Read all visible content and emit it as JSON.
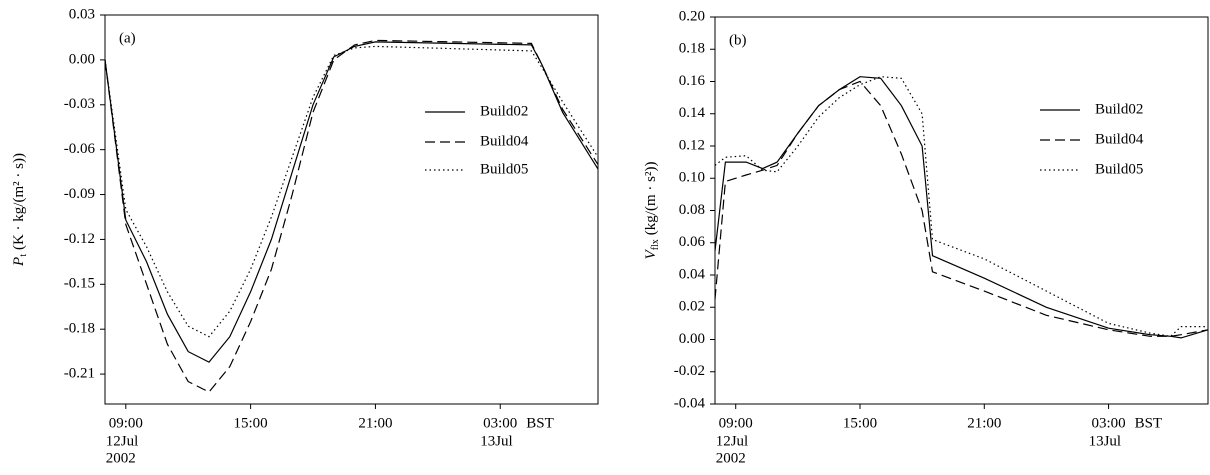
{
  "chart_data": [
    {
      "type": "line",
      "label": "(a)",
      "ylabel": {
        "symbol": "P",
        "subscript": "t",
        "unit": "(K · kg/(m² · s))"
      },
      "x": [
        8,
        9,
        10,
        11,
        12,
        13,
        14,
        15,
        16,
        17,
        18,
        19,
        20,
        21,
        28.5,
        29,
        30,
        31.7
      ],
      "series": [
        {
          "name": "Build02",
          "color": "#000000",
          "style": "solid",
          "values": [
            0,
            -0.107,
            -0.135,
            -0.17,
            -0.195,
            -0.202,
            -0.185,
            -0.155,
            -0.12,
            -0.075,
            -0.03,
            0.002,
            0.009,
            0.012,
            0.01,
            -0.003,
            -0.035,
            -0.073
          ]
        },
        {
          "name": "Build04",
          "color": "#000000",
          "style": "dashed",
          "values": [
            0,
            -0.11,
            -0.15,
            -0.19,
            -0.215,
            -0.222,
            -0.205,
            -0.175,
            -0.14,
            -0.09,
            -0.035,
            0,
            0.01,
            0.013,
            0.011,
            -0.003,
            -0.033,
            -0.07
          ]
        },
        {
          "name": "Build05",
          "color": "#000000",
          "style": "dotted",
          "values": [
            0,
            -0.1,
            -0.125,
            -0.155,
            -0.178,
            -0.185,
            -0.168,
            -0.14,
            -0.105,
            -0.065,
            -0.025,
            0.003,
            0.008,
            0.009,
            0.006,
            -0.005,
            -0.028,
            -0.065
          ]
        }
      ],
      "xlim": [
        8,
        31.7
      ],
      "xticks": [
        {
          "value": 9,
          "label": "09:00"
        },
        {
          "value": 15,
          "label": "15:00"
        },
        {
          "value": 21,
          "label": "21:00"
        },
        {
          "value": 27,
          "label": "03:00"
        }
      ],
      "xunit_label": "BST",
      "x_sublabels": [
        {
          "x": 9,
          "lines": [
            "12Jul",
            "2002"
          ]
        },
        {
          "x": 27,
          "lines": [
            "13Jul"
          ]
        }
      ],
      "ylim": [
        -0.23,
        0.03
      ],
      "yticks": [
        0.03,
        {
          "value": 0,
          "label": "0.00"
        },
        -0.03,
        -0.06,
        -0.09,
        -0.12,
        -0.15,
        -0.18,
        -0.21
      ]
    },
    {
      "type": "line",
      "label": "(b)",
      "ylabel": {
        "symbol": "V",
        "subscript": "flx",
        "unit": "(kg/(m · s²))"
      },
      "x": [
        8,
        8.5,
        9.5,
        10.3,
        11,
        12,
        13,
        14,
        15,
        16,
        17,
        18,
        18.5,
        21,
        24,
        27,
        29,
        30,
        30.5,
        31.8
      ],
      "series": [
        {
          "name": "Build02",
          "color": "#000000",
          "style": "solid",
          "values": [
            0.055,
            0.11,
            0.11,
            0.106,
            0.11,
            0.128,
            0.145,
            0.155,
            0.163,
            0.162,
            0.145,
            0.12,
            0.052,
            0.038,
            0.02,
            0.007,
            0.003,
            0.002,
            0.001,
            0.006
          ]
        },
        {
          "name": "Build04",
          "color": "#000000",
          "style": "dashed",
          "values": [
            0.025,
            0.098,
            0.102,
            0.105,
            0.108,
            0.128,
            0.145,
            0.155,
            0.16,
            0.145,
            0.115,
            0.08,
            0.042,
            0.03,
            0.015,
            0.006,
            0.002,
            0.002,
            0.003,
            0.006
          ]
        },
        {
          "name": "Build05",
          "color": "#000000",
          "style": "dotted",
          "values": [
            0.108,
            0.113,
            0.114,
            0.105,
            0.104,
            0.12,
            0.138,
            0.15,
            0.158,
            0.163,
            0.162,
            0.14,
            0.062,
            0.05,
            0.03,
            0.01,
            0.004,
            0.002,
            0.008,
            0.008
          ]
        }
      ],
      "xlim": [
        8,
        31.8
      ],
      "xticks": [
        {
          "value": 9,
          "label": "09:00"
        },
        {
          "value": 15,
          "label": "15:00"
        },
        {
          "value": 21,
          "label": "21:00"
        },
        {
          "value": 27,
          "label": "03:00"
        }
      ],
      "xunit_label": "BST",
      "x_sublabels": [
        {
          "x": 9,
          "lines": [
            "12Jul",
            "2002"
          ]
        },
        {
          "x": 27,
          "lines": [
            "13Jul"
          ]
        }
      ],
      "ylim": [
        -0.04,
        0.2
      ],
      "yticks": [
        {
          "value": 0.2,
          "label": "0.20"
        },
        0.18,
        0.16,
        0.14,
        0.12,
        {
          "value": 0.1,
          "label": "0.10"
        },
        0.08,
        0.06,
        0.04,
        0.02,
        {
          "value": 0,
          "label": "0.00"
        },
        -0.02,
        -0.04
      ]
    }
  ]
}
